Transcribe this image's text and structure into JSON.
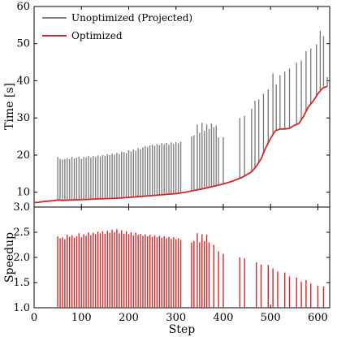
{
  "chart_data": [
    {
      "type": "line",
      "panel": "top",
      "xlabel": "",
      "ylabel": "Time [s]",
      "xlim": [
        0,
        625
      ],
      "ylim": [
        6,
        60
      ],
      "x_ticks": [
        0,
        100,
        200,
        300,
        400,
        500,
        600
      ],
      "y_ticks": [
        10,
        20,
        30,
        40,
        50,
        60
      ],
      "legend_position": "top-left",
      "series": [
        {
          "name": "Unoptimized (Projected)",
          "color": "#7f7f7f",
          "style": "spikes",
          "points": [
            [
              50,
              19.5
            ],
            [
              55,
              19.0
            ],
            [
              60,
              18.8
            ],
            [
              65,
              18.9
            ],
            [
              70,
              19.2
            ],
            [
              75,
              18.9
            ],
            [
              80,
              19.5
            ],
            [
              85,
              19.1
            ],
            [
              90,
              19.3
            ],
            [
              95,
              19.6
            ],
            [
              100,
              19.0
            ],
            [
              105,
              19.5
            ],
            [
              110,
              19.4
            ],
            [
              115,
              19.8
            ],
            [
              120,
              19.3
            ],
            [
              125,
              19.7
            ],
            [
              130,
              19.5
            ],
            [
              135,
              19.9
            ],
            [
              140,
              19.6
            ],
            [
              145,
              20.0
            ],
            [
              150,
              19.8
            ],
            [
              155,
              20.2
            ],
            [
              160,
              20.0
            ],
            [
              165,
              20.4
            ],
            [
              170,
              20.1
            ],
            [
              175,
              20.6
            ],
            [
              180,
              20.3
            ],
            [
              185,
              20.9
            ],
            [
              190,
              20.8
            ],
            [
              195,
              20.5
            ],
            [
              200,
              21.3
            ],
            [
              205,
              21.0
            ],
            [
              210,
              21.5
            ],
            [
              215,
              21.2
            ],
            [
              220,
              21.9
            ],
            [
              225,
              21.6
            ],
            [
              230,
              22.1
            ],
            [
              235,
              22.4
            ],
            [
              240,
              22.2
            ],
            [
              245,
              22.6
            ],
            [
              250,
              22.8
            ],
            [
              255,
              22.5
            ],
            [
              260,
              23.0
            ],
            [
              265,
              22.7
            ],
            [
              270,
              23.2
            ],
            [
              275,
              22.9
            ],
            [
              280,
              23.3
            ],
            [
              285,
              22.8
            ],
            [
              290,
              23.4
            ],
            [
              295,
              23.0
            ],
            [
              300,
              23.5
            ],
            [
              305,
              23.2
            ],
            [
              310,
              23.6
            ],
            [
              333,
              25.0
            ],
            [
              338,
              25.3
            ],
            [
              345,
              28.2
            ],
            [
              350,
              26.0
            ],
            [
              355,
              28.7
            ],
            [
              360,
              26.5
            ],
            [
              365,
              28.2
            ],
            [
              370,
              27.0
            ],
            [
              375,
              28.5
            ],
            [
              380,
              27.5
            ],
            [
              385,
              28.0
            ],
            [
              390,
              24.7
            ],
            [
              400,
              24.8
            ],
            [
              435,
              30.0
            ],
            [
              445,
              30.6
            ],
            [
              460,
              32.5
            ],
            [
              467,
              34.6
            ],
            [
              475,
              35.0
            ],
            [
              485,
              36.5
            ],
            [
              495,
              37.7
            ],
            [
              505,
              42.0
            ],
            [
              512,
              39.0
            ],
            [
              520,
              41.5
            ],
            [
              530,
              42.5
            ],
            [
              540,
              43.3
            ],
            [
              555,
              44.8
            ],
            [
              565,
              45.5
            ],
            [
              575,
              48.0
            ],
            [
              585,
              48.7
            ],
            [
              597,
              49.8
            ],
            [
              605,
              53.5
            ],
            [
              612,
              52.0
            ],
            [
              620,
              41.0
            ]
          ]
        },
        {
          "name": "Optimized",
          "color": "#d62728",
          "style": "line",
          "points": [
            [
              0,
              7.2
            ],
            [
              10,
              7.3
            ],
            [
              20,
              7.5
            ],
            [
              30,
              7.6
            ],
            [
              40,
              7.7
            ],
            [
              50,
              7.9
            ],
            [
              60,
              7.8
            ],
            [
              80,
              7.9
            ],
            [
              100,
              8.0
            ],
            [
              120,
              8.1
            ],
            [
              140,
              8.2
            ],
            [
              160,
              8.3
            ],
            [
              180,
              8.4
            ],
            [
              200,
              8.6
            ],
            [
              220,
              8.8
            ],
            [
              240,
              9.0
            ],
            [
              260,
              9.2
            ],
            [
              280,
              9.4
            ],
            [
              300,
              9.6
            ],
            [
              320,
              10.0
            ],
            [
              340,
              10.5
            ],
            [
              360,
              11.0
            ],
            [
              380,
              11.6
            ],
            [
              400,
              12.2
            ],
            [
              420,
              13.0
            ],
            [
              440,
              14.0
            ],
            [
              460,
              15.5
            ],
            [
              470,
              17.0
            ],
            [
              480,
              19.0
            ],
            [
              490,
              22.0
            ],
            [
              500,
              24.5
            ],
            [
              510,
              26.5
            ],
            [
              520,
              27.0
            ],
            [
              530,
              27.0
            ],
            [
              540,
              27.2
            ],
            [
              550,
              28.0
            ],
            [
              560,
              28.5
            ],
            [
              570,
              30.5
            ],
            [
              580,
              33.0
            ],
            [
              590,
              34.5
            ],
            [
              600,
              36.5
            ],
            [
              610,
              38.0
            ],
            [
              620,
              38.5
            ]
          ]
        }
      ]
    },
    {
      "type": "line",
      "panel": "bottom",
      "xlabel": "Step",
      "ylabel": "Speedup",
      "xlim": [
        0,
        625
      ],
      "ylim": [
        1.0,
        3.0
      ],
      "x_ticks": [
        0,
        100,
        200,
        300,
        400,
        500,
        600
      ],
      "y_ticks": [
        1.0,
        1.5,
        2.0,
        2.5,
        3.0
      ],
      "series": [
        {
          "name": "",
          "color": "#d62728",
          "style": "spikes",
          "points": [
            [
              50,
              2.42
            ],
            [
              55,
              2.38
            ],
            [
              60,
              2.4
            ],
            [
              65,
              2.36
            ],
            [
              70,
              2.45
            ],
            [
              75,
              2.41
            ],
            [
              80,
              2.44
            ],
            [
              85,
              2.39
            ],
            [
              90,
              2.42
            ],
            [
              95,
              2.48
            ],
            [
              100,
              2.4
            ],
            [
              105,
              2.46
            ],
            [
              110,
              2.43
            ],
            [
              115,
              2.5
            ],
            [
              120,
              2.44
            ],
            [
              125,
              2.49
            ],
            [
              130,
              2.46
            ],
            [
              135,
              2.51
            ],
            [
              140,
              2.48
            ],
            [
              145,
              2.52
            ],
            [
              150,
              2.47
            ],
            [
              155,
              2.53
            ],
            [
              160,
              2.49
            ],
            [
              165,
              2.55
            ],
            [
              170,
              2.5
            ],
            [
              175,
              2.56
            ],
            [
              180,
              2.48
            ],
            [
              185,
              2.54
            ],
            [
              190,
              2.47
            ],
            [
              195,
              2.52
            ],
            [
              200,
              2.46
            ],
            [
              205,
              2.5
            ],
            [
              210,
              2.44
            ],
            [
              215,
              2.49
            ],
            [
              220,
              2.45
            ],
            [
              225,
              2.47
            ],
            [
              230,
              2.43
            ],
            [
              235,
              2.46
            ],
            [
              240,
              2.42
            ],
            [
              245,
              2.45
            ],
            [
              250,
              2.41
            ],
            [
              255,
              2.44
            ],
            [
              260,
              2.4
            ],
            [
              265,
              2.43
            ],
            [
              270,
              2.39
            ],
            [
              275,
              2.42
            ],
            [
              280,
              2.38
            ],
            [
              285,
              2.41
            ],
            [
              290,
              2.37
            ],
            [
              295,
              2.4
            ],
            [
              300,
              2.36
            ],
            [
              305,
              2.38
            ],
            [
              310,
              2.35
            ],
            [
              333,
              2.3
            ],
            [
              338,
              2.33
            ],
            [
              345,
              2.48
            ],
            [
              350,
              2.3
            ],
            [
              355,
              2.46
            ],
            [
              360,
              2.32
            ],
            [
              365,
              2.45
            ],
            [
              370,
              2.3
            ],
            [
              380,
              2.25
            ],
            [
              390,
              2.12
            ],
            [
              400,
              2.07
            ],
            [
              435,
              2.0
            ],
            [
              445,
              1.98
            ],
            [
              470,
              1.9
            ],
            [
              480,
              1.86
            ],
            [
              495,
              1.85
            ],
            [
              505,
              1.78
            ],
            [
              515,
              1.72
            ],
            [
              530,
              1.7
            ],
            [
              540,
              1.62
            ],
            [
              555,
              1.6
            ],
            [
              565,
              1.52
            ],
            [
              575,
              1.55
            ],
            [
              585,
              1.48
            ],
            [
              600,
              1.44
            ],
            [
              612,
              1.42
            ]
          ]
        }
      ]
    }
  ]
}
